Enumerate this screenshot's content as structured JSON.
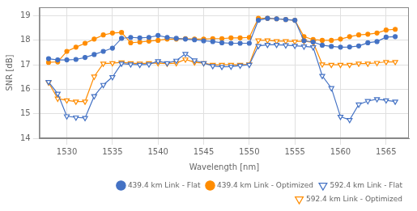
{
  "chart_data": {
    "type": "line",
    "x": [
      1528,
      1529,
      1530,
      1531,
      1532,
      1533,
      1534,
      1535,
      1536,
      1537,
      1538,
      1539,
      1540,
      1541,
      1542,
      1543,
      1544,
      1545,
      1546,
      1547,
      1548,
      1549,
      1550,
      1551,
      1552,
      1553,
      1554,
      1555,
      1556,
      1557,
      1558,
      1559,
      1560,
      1561,
      1562,
      1563,
      1564,
      1565,
      1566
    ],
    "series": [
      {
        "name": "439.4 km Link - Flat",
        "color": "#4472C4",
        "marker": "circle",
        "values": [
          17.25,
          17.2,
          17.2,
          17.22,
          17.3,
          17.42,
          17.55,
          17.68,
          18.08,
          18.12,
          18.1,
          18.12,
          18.2,
          18.12,
          18.08,
          18.05,
          18.02,
          17.98,
          17.95,
          17.9,
          17.88,
          17.88,
          17.88,
          18.82,
          18.9,
          18.88,
          18.85,
          18.82,
          17.98,
          17.93,
          17.8,
          17.75,
          17.72,
          17.73,
          17.77,
          17.9,
          17.95,
          18.13,
          18.15
        ]
      },
      {
        "name": "439.4 km Link - Optimized",
        "color": "#FF8C00",
        "marker": "circle",
        "values": [
          17.1,
          17.12,
          17.55,
          17.72,
          17.88,
          18.05,
          18.22,
          18.3,
          18.32,
          17.9,
          17.93,
          17.97,
          18.0,
          18.05,
          18.05,
          18.07,
          18.05,
          18.05,
          18.07,
          18.07,
          18.1,
          18.1,
          18.12,
          18.9,
          18.9,
          18.88,
          18.85,
          18.82,
          18.15,
          18.03,
          18.0,
          18.0,
          18.05,
          18.15,
          18.22,
          18.25,
          18.3,
          18.42,
          18.45
        ]
      },
      {
        "name": "592.4 km Link - Flat",
        "color": "#4472C4",
        "marker": "triangle_down",
        "values": [
          16.3,
          15.82,
          14.9,
          14.85,
          14.83,
          15.72,
          16.18,
          16.5,
          17.05,
          17.02,
          17.0,
          17.02,
          17.15,
          17.07,
          17.17,
          17.45,
          17.18,
          17.07,
          16.95,
          16.92,
          16.93,
          16.97,
          17.0,
          17.77,
          17.82,
          17.82,
          17.8,
          17.78,
          17.75,
          17.72,
          16.55,
          16.05,
          14.88,
          14.75,
          15.38,
          15.52,
          15.6,
          15.55,
          15.5
        ]
      },
      {
        "name": "592.4 km Link - Optimized",
        "color": "#FF8C00",
        "marker": "triangle_down",
        "values": [
          16.28,
          15.62,
          15.55,
          15.5,
          15.5,
          16.52,
          17.05,
          17.07,
          17.1,
          17.07,
          17.05,
          17.07,
          17.07,
          17.05,
          17.07,
          17.22,
          17.1,
          17.07,
          17.0,
          17.0,
          17.0,
          17.0,
          17.02,
          18.0,
          18.0,
          17.97,
          17.97,
          17.95,
          17.97,
          17.92,
          17.02,
          17.0,
          17.0,
          17.0,
          17.05,
          17.05,
          17.08,
          17.12,
          17.12
        ]
      }
    ],
    "xlabel": "Wavelength [nm]",
    "ylabel": "SNR [dB]",
    "xlim": [
      1527.0,
      1567.5
    ],
    "ylim": [
      14.0,
      19.35
    ],
    "xticks": [
      1530,
      1535,
      1540,
      1545,
      1550,
      1555,
      1560,
      1565
    ],
    "yticks": [
      14,
      15,
      16,
      17,
      18,
      19
    ],
    "grid": true,
    "legend": "lower right"
  }
}
